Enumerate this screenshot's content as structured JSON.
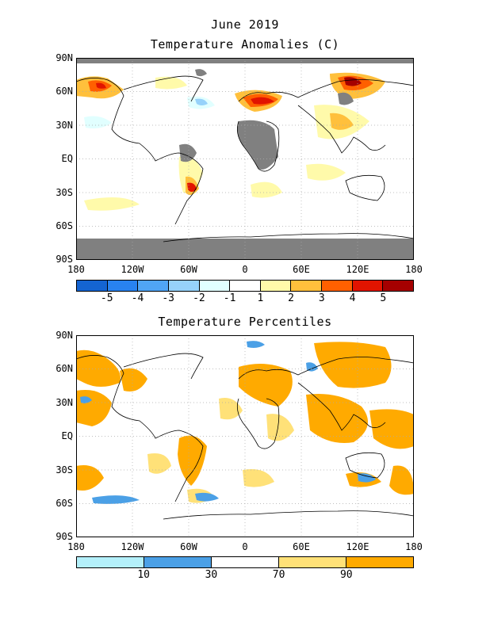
{
  "header": {
    "date": "June 2019",
    "top_title": "Temperature Anomalies (C)",
    "bottom_title": "Temperature Percentiles"
  },
  "axes": {
    "lat_labels": [
      "90N",
      "60N",
      "30N",
      "EQ",
      "30S",
      "60S",
      "90S"
    ],
    "lon_labels": [
      "180",
      "120W",
      "60W",
      "0",
      "60E",
      "120E",
      "180"
    ]
  },
  "anomaly_legend": {
    "labels": [
      "-5",
      "-4",
      "-3",
      "-2",
      "-1",
      "1",
      "2",
      "3",
      "4",
      "5"
    ],
    "colors": [
      "#1464d2",
      "#2882f0",
      "#50a5f5",
      "#96d2fa",
      "#e1ffff",
      "#ffffff",
      "#fffaaa",
      "#ffc03c",
      "#ff6000",
      "#e11400",
      "#a50000"
    ]
  },
  "percentile_legend": {
    "labels": [
      "10",
      "30",
      "70",
      "90"
    ],
    "colors": [
      "#b4f0fa",
      "#4ba0e6",
      "#ffffff",
      "#ffe178",
      "#ffaa00"
    ]
  },
  "colors": {
    "missing_data": "#808080",
    "coastline": "#000000",
    "grid": "#aaaaaa"
  }
}
